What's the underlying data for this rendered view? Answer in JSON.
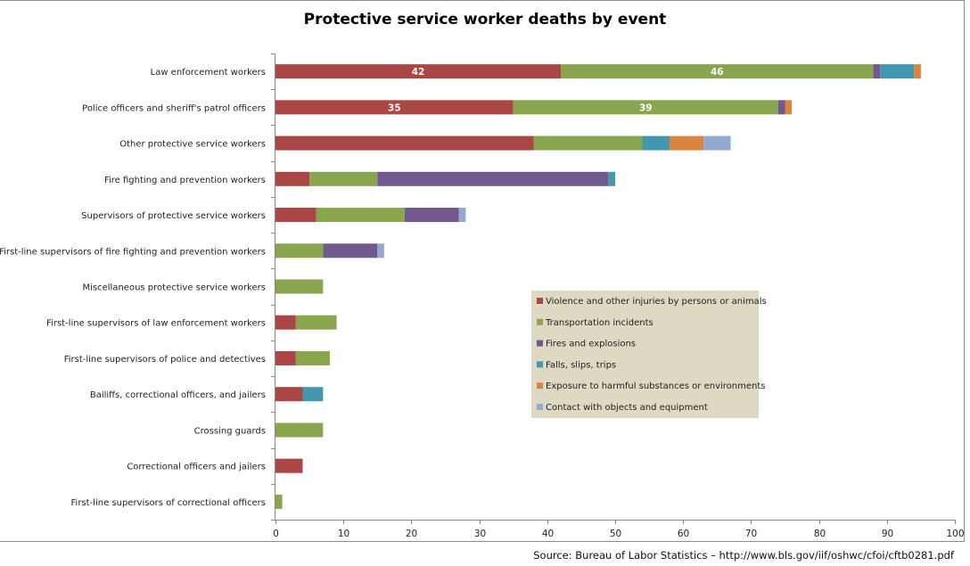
{
  "chart_data": {
    "type": "bar",
    "orientation": "horizontal",
    "stacked": true,
    "title": "Protective service worker deaths by event",
    "xlabel": "",
    "ylabel": "",
    "xlim": [
      0,
      100
    ],
    "xticks": [
      0,
      10,
      20,
      30,
      40,
      50,
      60,
      70,
      80,
      90,
      100
    ],
    "grid": false,
    "legend_position": "center-right",
    "categories": [
      "Law enforcement workers",
      "Police officers and sheriff's patrol officers",
      "Other protective service workers",
      "Fire fighting and prevention workers",
      "Supervisors of protective service workers",
      "First-line supervisors of fire fighting and prevention workers",
      "Miscellaneous protective service workers",
      "First-line supervisors of law enforcement workers",
      "First-line supervisors of police and detectives",
      "Bailiffs, correctional officers, and jailers",
      "Crossing guards",
      "Correctional officers and jailers",
      "First-line supervisors of correctional officers"
    ],
    "series": [
      {
        "name": "Violence and other injuries by persons or animals",
        "color": "#aa4643",
        "values": [
          42,
          35,
          38,
          5,
          6,
          0,
          0,
          3,
          3,
          4,
          0,
          4,
          0
        ]
      },
      {
        "name": "Transportation incidents",
        "color": "#89a54e",
        "values": [
          46,
          39,
          16,
          10,
          13,
          7,
          7,
          6,
          5,
          0,
          7,
          0,
          1
        ]
      },
      {
        "name": "Fires and explosions",
        "color": "#71588f",
        "values": [
          1,
          1,
          0,
          34,
          8,
          8,
          0,
          0,
          0,
          0,
          0,
          0,
          0
        ]
      },
      {
        "name": "Falls, slips, trips",
        "color": "#4198af",
        "values": [
          5,
          0,
          4,
          1,
          0,
          0,
          0,
          0,
          0,
          3,
          0,
          0,
          0
        ]
      },
      {
        "name": "Exposure to harmful substances or environments",
        "color": "#db843d",
        "values": [
          1,
          1,
          5,
          0,
          0,
          0,
          0,
          0,
          0,
          0,
          0,
          0,
          0
        ]
      },
      {
        "name": "Contact with objects and equipment",
        "color": "#93a9cf",
        "values": [
          0,
          0,
          4,
          0,
          1,
          1,
          0,
          0,
          0,
          0,
          0,
          0,
          0
        ]
      }
    ],
    "data_labels": [
      {
        "category": "Law enforcement workers",
        "series": "Violence and other injuries by persons or animals",
        "text": "42"
      },
      {
        "category": "Law enforcement workers",
        "series": "Transportation incidents",
        "text": "46"
      },
      {
        "category": "Police officers and sheriff's patrol officers",
        "series": "Violence and other injuries by persons or animals",
        "text": "35"
      },
      {
        "category": "Police officers and sheriff's patrol officers",
        "series": "Transportation incidents",
        "text": "39"
      }
    ],
    "legend_background": "#ddd9c3",
    "source_note": "Source: Bureau of Labor Statistics – http://www.bls.gov/iif/oshwc/cfoi/cftb0281.pdf"
  }
}
